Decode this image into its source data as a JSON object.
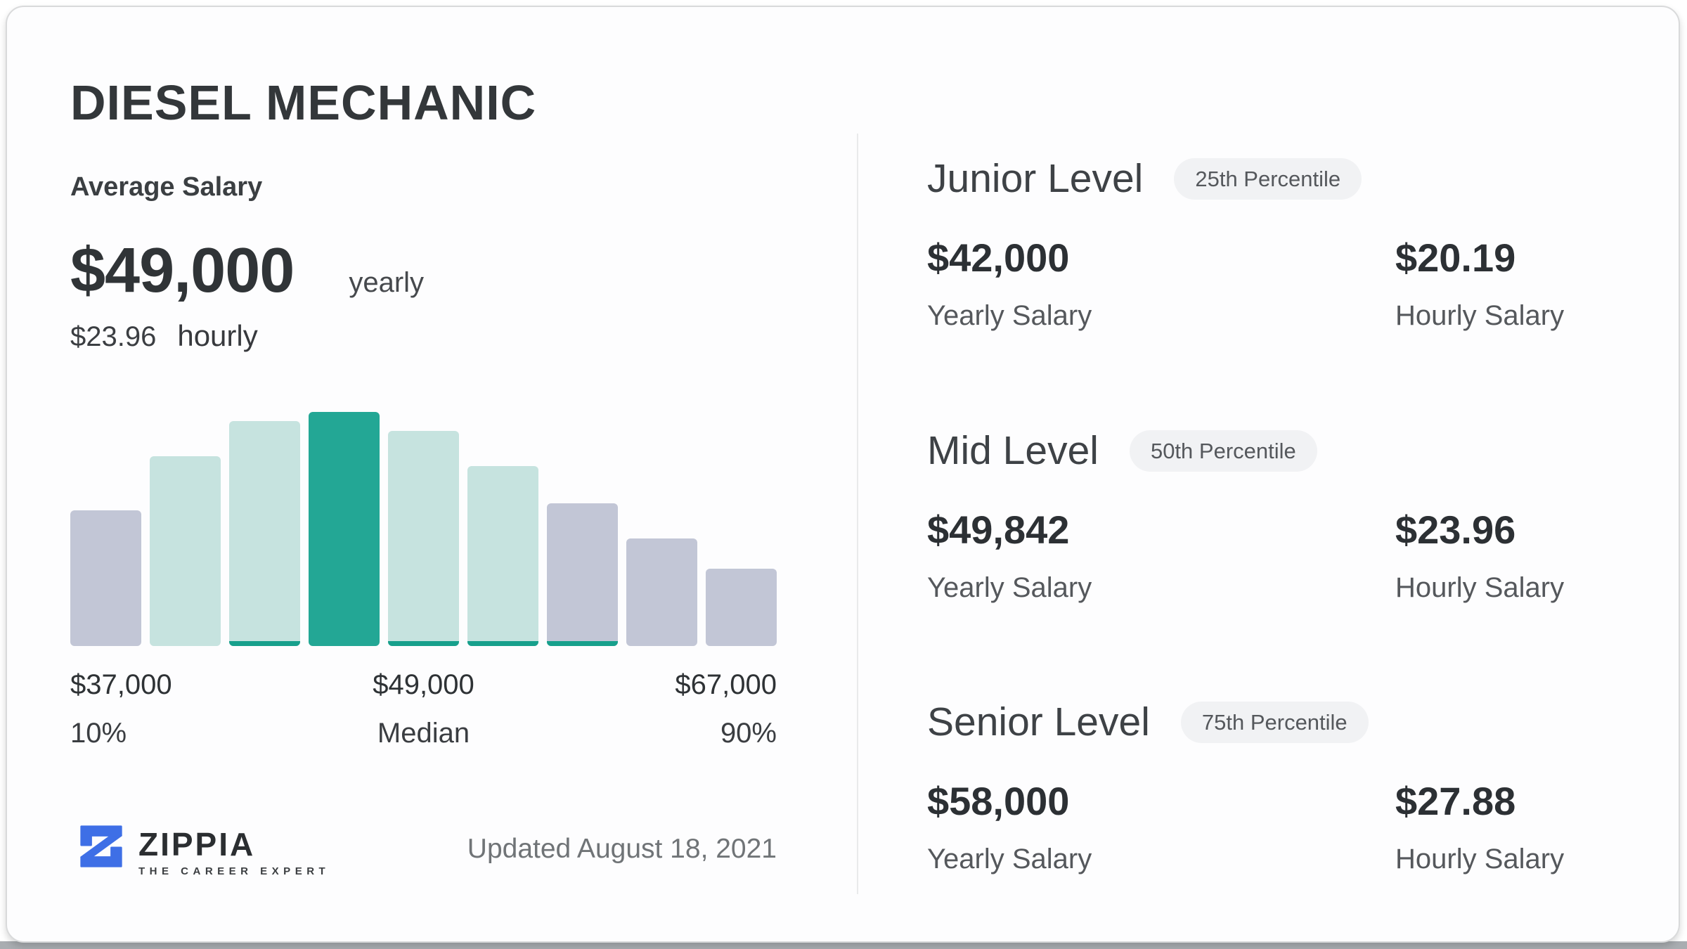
{
  "card": {
    "title": "DIESEL MECHANIC",
    "updated": "Updated August 18, 2021"
  },
  "summary": {
    "heading": "Average Salary",
    "yearly_value": "$49,000",
    "yearly_unit": "yearly",
    "hourly_value": "$23.96",
    "hourly_unit": "hourly"
  },
  "chart_data": {
    "type": "bar",
    "title": "Diesel Mechanic salary distribution histogram",
    "xlabel": "",
    "ylabel": "",
    "ylim": [
      0,
      100
    ],
    "grid": false,
    "legend": false,
    "bars": [
      {
        "relative_height_pct": 58,
        "color": "lavender",
        "underline": false
      },
      {
        "relative_height_pct": 81,
        "color": "teal_light",
        "underline": false
      },
      {
        "relative_height_pct": 96,
        "color": "teal_light",
        "underline": true
      },
      {
        "relative_height_pct": 100,
        "color": "teal_dark",
        "underline": false
      },
      {
        "relative_height_pct": 92,
        "color": "teal_light",
        "underline": true
      },
      {
        "relative_height_pct": 77,
        "color": "teal_light",
        "underline": true
      },
      {
        "relative_height_pct": 61,
        "color": "lavender",
        "underline": true
      },
      {
        "relative_height_pct": 46,
        "color": "lavender",
        "underline": false
      },
      {
        "relative_height_pct": 33,
        "color": "lavender",
        "underline": false
      }
    ],
    "x_annotations": [
      {
        "value": "$37,000",
        "label": "10%",
        "position": "left"
      },
      {
        "value": "$49,000",
        "label": "Median",
        "position": "center"
      },
      {
        "value": "$67,000",
        "label": "90%",
        "position": "right"
      }
    ]
  },
  "levels": [
    {
      "name": "Junior Level",
      "percentile": "25th Percentile",
      "yearly_value": "$42,000",
      "yearly_label": "Yearly Salary",
      "hourly_value": "$20.19",
      "hourly_label": "Hourly Salary"
    },
    {
      "name": "Mid Level",
      "percentile": "50th Percentile",
      "yearly_value": "$49,842",
      "yearly_label": "Yearly Salary",
      "hourly_value": "$23.96",
      "hourly_label": "Hourly Salary"
    },
    {
      "name": "Senior Level",
      "percentile": "75th Percentile",
      "yearly_value": "$58,000",
      "yearly_label": "Yearly Salary",
      "hourly_value": "$27.88",
      "hourly_label": "Hourly Salary"
    }
  ],
  "brand": {
    "name": "ZIPPIA",
    "tagline": "THE CAREER EXPERT",
    "logo_icon": "zippia-z-icon"
  },
  "colors": {
    "bar_lavender": "#c2c6d6",
    "bar_teal_light": "#c6e3df",
    "bar_teal_dark": "#23a795",
    "bar_underline": "#17a08c",
    "brand_blue": "#3e6fe6",
    "pill_bg": "#f1f2f4",
    "divider": "#e9eaeb",
    "card_border": "#d9dadb",
    "page_strip": "#a9adb1"
  }
}
